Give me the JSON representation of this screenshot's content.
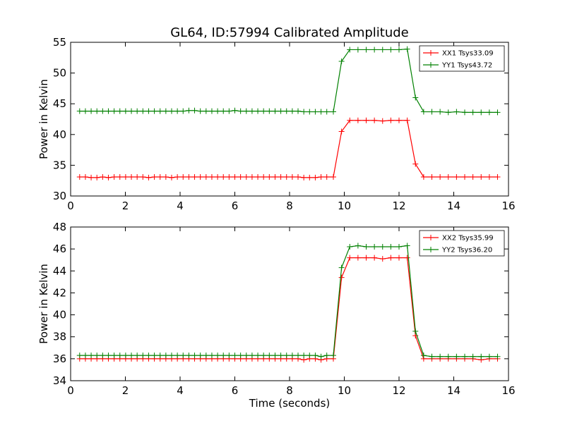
{
  "chart_data": [
    {
      "type": "line",
      "title": "GL64, ID:57994 Calibrated Amplitude",
      "xlabel": "",
      "ylabel": "Power in Kelvin",
      "xlim": [
        0,
        16
      ],
      "ylim": [
        30,
        55
      ],
      "xticks": [
        0,
        2,
        4,
        6,
        8,
        10,
        12,
        14,
        16
      ],
      "yticks": [
        30,
        35,
        40,
        45,
        50,
        55
      ],
      "grid": false,
      "legend": "top-right",
      "x": [
        0.33,
        0.54,
        0.75,
        0.96,
        1.17,
        1.38,
        1.59,
        1.8,
        2.01,
        2.22,
        2.43,
        2.64,
        2.85,
        3.06,
        3.27,
        3.48,
        3.69,
        3.9,
        4.11,
        4.32,
        4.53,
        4.74,
        4.95,
        5.16,
        5.37,
        5.58,
        5.79,
        6.0,
        6.21,
        6.42,
        6.63,
        6.84,
        7.05,
        7.26,
        7.47,
        7.68,
        7.89,
        8.1,
        8.31,
        8.52,
        8.73,
        8.94,
        9.15,
        9.36,
        9.6,
        9.9,
        10.2,
        10.5,
        10.8,
        11.1,
        11.4,
        11.7,
        12.0,
        12.3,
        12.6,
        12.9,
        13.2,
        13.5,
        13.8,
        14.1,
        14.4,
        14.7,
        15.0,
        15.3,
        15.6
      ],
      "series": [
        {
          "name": "XX1 Tsys33.09",
          "color": "#ff0000",
          "values": [
            33.1,
            33.1,
            33.0,
            33.0,
            33.1,
            33.0,
            33.1,
            33.1,
            33.1,
            33.1,
            33.1,
            33.1,
            33.0,
            33.1,
            33.1,
            33.1,
            33.0,
            33.1,
            33.1,
            33.1,
            33.1,
            33.1,
            33.1,
            33.1,
            33.1,
            33.1,
            33.1,
            33.1,
            33.1,
            33.1,
            33.1,
            33.1,
            33.1,
            33.1,
            33.1,
            33.1,
            33.1,
            33.1,
            33.1,
            33.0,
            33.0,
            33.0,
            33.1,
            33.1,
            33.1,
            40.5,
            42.3,
            42.3,
            42.3,
            42.3,
            42.2,
            42.3,
            42.3,
            42.3,
            35.2,
            33.1,
            33.1,
            33.1,
            33.1,
            33.1,
            33.1,
            33.1,
            33.1,
            33.1,
            33.1
          ]
        },
        {
          "name": "YY1 Tsys43.72",
          "color": "#008000",
          "values": [
            43.8,
            43.8,
            43.8,
            43.8,
            43.8,
            43.8,
            43.8,
            43.8,
            43.8,
            43.8,
            43.8,
            43.8,
            43.8,
            43.8,
            43.8,
            43.8,
            43.8,
            43.8,
            43.8,
            43.9,
            43.9,
            43.8,
            43.8,
            43.8,
            43.8,
            43.8,
            43.8,
            43.9,
            43.8,
            43.8,
            43.8,
            43.8,
            43.8,
            43.8,
            43.8,
            43.8,
            43.8,
            43.8,
            43.8,
            43.7,
            43.7,
            43.7,
            43.7,
            43.7,
            43.7,
            51.9,
            53.8,
            53.8,
            53.8,
            53.8,
            53.8,
            53.8,
            53.8,
            53.9,
            46.0,
            43.7,
            43.7,
            43.7,
            43.6,
            43.7,
            43.6,
            43.6,
            43.6,
            43.6,
            43.6
          ]
        }
      ]
    },
    {
      "type": "line",
      "title": "",
      "xlabel": "Time (seconds)",
      "ylabel": "Power in Kelvin",
      "xlim": [
        0,
        16
      ],
      "ylim": [
        34,
        48
      ],
      "xticks": [
        0,
        2,
        4,
        6,
        8,
        10,
        12,
        14,
        16
      ],
      "yticks": [
        34,
        36,
        38,
        40,
        42,
        44,
        46,
        48
      ],
      "grid": false,
      "legend": "top-right",
      "x": [
        0.33,
        0.54,
        0.75,
        0.96,
        1.17,
        1.38,
        1.59,
        1.8,
        2.01,
        2.22,
        2.43,
        2.64,
        2.85,
        3.06,
        3.27,
        3.48,
        3.69,
        3.9,
        4.11,
        4.32,
        4.53,
        4.74,
        4.95,
        5.16,
        5.37,
        5.58,
        5.79,
        6.0,
        6.21,
        6.42,
        6.63,
        6.84,
        7.05,
        7.26,
        7.47,
        7.68,
        7.89,
        8.1,
        8.31,
        8.52,
        8.73,
        8.94,
        9.15,
        9.36,
        9.6,
        9.9,
        10.2,
        10.5,
        10.8,
        11.1,
        11.4,
        11.7,
        12.0,
        12.3,
        12.6,
        12.9,
        13.2,
        13.5,
        13.8,
        14.1,
        14.4,
        14.7,
        15.0,
        15.3,
        15.6
      ],
      "series": [
        {
          "name": "XX2 Tsys35.99",
          "color": "#ff0000",
          "values": [
            36.0,
            36.0,
            36.0,
            36.0,
            36.0,
            36.0,
            36.0,
            36.0,
            36.0,
            36.0,
            36.0,
            36.0,
            36.0,
            36.0,
            36.0,
            36.0,
            36.0,
            36.0,
            36.0,
            36.0,
            36.0,
            36.0,
            36.0,
            36.0,
            36.0,
            36.0,
            36.0,
            36.0,
            36.0,
            36.0,
            36.0,
            36.0,
            36.0,
            36.0,
            36.0,
            36.0,
            36.0,
            36.0,
            36.0,
            35.9,
            36.0,
            36.0,
            35.9,
            36.0,
            36.0,
            43.4,
            45.2,
            45.2,
            45.2,
            45.2,
            45.1,
            45.2,
            45.2,
            45.2,
            38.1,
            36.0,
            36.0,
            36.0,
            36.0,
            36.0,
            36.0,
            36.0,
            35.9,
            36.0,
            36.0
          ]
        },
        {
          "name": "YY2 Tsys36.20",
          "color": "#008000",
          "values": [
            36.3,
            36.3,
            36.3,
            36.3,
            36.3,
            36.3,
            36.3,
            36.3,
            36.3,
            36.3,
            36.3,
            36.3,
            36.3,
            36.3,
            36.3,
            36.3,
            36.3,
            36.3,
            36.3,
            36.3,
            36.3,
            36.3,
            36.3,
            36.3,
            36.3,
            36.3,
            36.3,
            36.3,
            36.3,
            36.3,
            36.3,
            36.3,
            36.3,
            36.3,
            36.3,
            36.3,
            36.3,
            36.3,
            36.3,
            36.3,
            36.3,
            36.3,
            36.2,
            36.3,
            36.3,
            44.3,
            46.2,
            46.3,
            46.2,
            46.2,
            46.2,
            46.2,
            46.2,
            46.3,
            38.5,
            36.3,
            36.2,
            36.2,
            36.2,
            36.2,
            36.2,
            36.2,
            36.2,
            36.2,
            36.2
          ]
        }
      ]
    }
  ]
}
